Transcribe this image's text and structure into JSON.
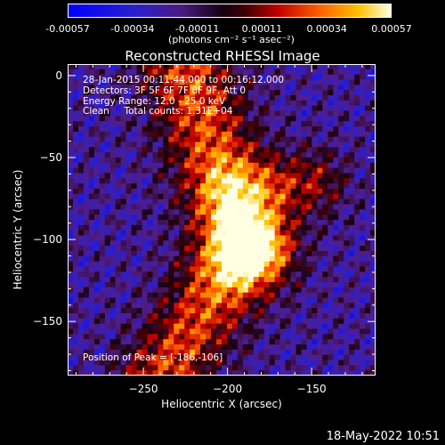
{
  "colorbar": {
    "tick_labels": [
      "-0.00057",
      "-0.00034",
      "-0.00011",
      "0.00011",
      "0.00034",
      "0.00057"
    ],
    "units": "(photons cm⁻² s⁻¹ asec⁻²)",
    "range": [
      -0.00057,
      0.00057
    ]
  },
  "chart_data": {
    "type": "heatmap",
    "title": "Reconstructed RHESSI Image",
    "xlabel": "Heliocentric X (arcsec)",
    "ylabel": "Heliocentric Y (arcsec)",
    "xlim": [
      -295,
      -112
    ],
    "ylim": [
      -183,
      7
    ],
    "x_ticks": [
      -250,
      -200,
      -150
    ],
    "x_tick_labels": [
      "−250",
      "−200",
      "−150"
    ],
    "y_ticks": [
      0,
      -50,
      -100,
      -150
    ],
    "y_tick_labels": [
      "0",
      "−50",
      "−100",
      "−150"
    ],
    "peak": [
      -186,
      -106
    ],
    "annotations": [
      "28-Jan-2015 00:11:44.000 to 00:16:12.000",
      "Detectors: 3F 5F 6F 7F 8F 9F, Att 0",
      "Energy Range: 12.0 - 25.0 keV",
      "Clean     Total counts: 1.31E+04"
    ],
    "peak_label": "Position of Peak = [-186,-106]"
  },
  "timestamp": "18-May-2022 10:51"
}
